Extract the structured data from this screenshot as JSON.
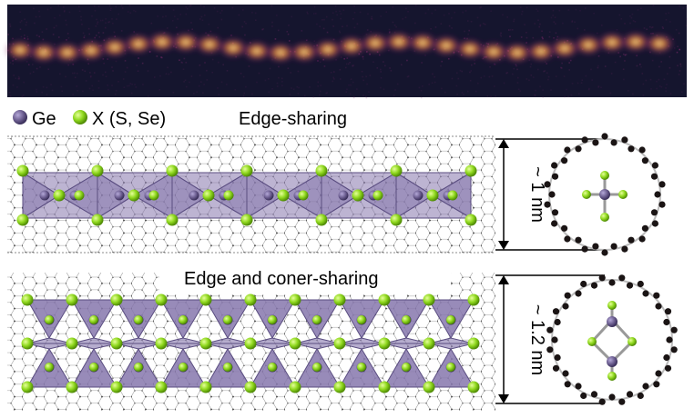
{
  "legend": {
    "ge_label": "Ge",
    "x_label": "X (S, Se)",
    "ge_color": "#6a5c8e",
    "x_color": "#8fd81e"
  },
  "panel_top": {
    "title": "Edge-sharing",
    "dimension_label": "~ 1 nm"
  },
  "panel_bottom": {
    "title": "Edge and coner-sharing",
    "dimension_label": "~ 1.2 nm"
  },
  "colors": {
    "polyhedron_fill": "#8677ad",
    "polyhedron_edge": "#5a4d80",
    "lattice": "#9a9a9a",
    "carbon_atom": "#1a1414",
    "micrograph_bg": "#15152e",
    "micrograph_glow": "#e8822a"
  }
}
